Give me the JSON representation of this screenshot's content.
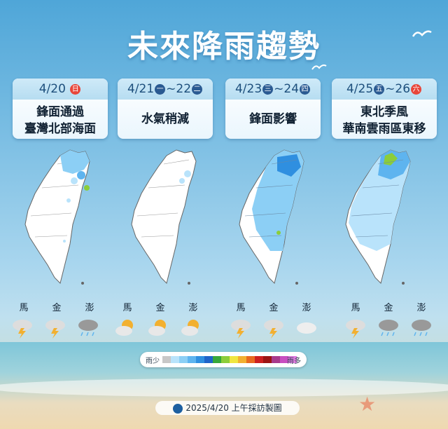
{
  "title": "未來降雨趨勢",
  "footer": "2025/4/20 上午採訪製圖",
  "legend": {
    "low": "雨少",
    "high": "雨多",
    "colors": [
      "#c8c8c8",
      "#b9e3fb",
      "#8ccff5",
      "#5eb4ef",
      "#2f8fe0",
      "#1f64c9",
      "#38a83a",
      "#8ccd3a",
      "#f0e640",
      "#f2b030",
      "#e86a20",
      "#cc2020",
      "#9c1414",
      "#a83a8c",
      "#c84ec0",
      "#e07ae0"
    ]
  },
  "stations": [
    "馬",
    "金",
    "澎"
  ],
  "panels": [
    {
      "date_main": "4/20",
      "weekday": "日",
      "weekday_color": "#e8463a",
      "desc1": "鋒面通過",
      "desc2": "臺灣北部海面",
      "weather": [
        "thunder-rain-icon",
        "thunder-rain-icon",
        "cloud-rain-icon"
      ]
    },
    {
      "date_main": "4/21",
      "weekday": "一",
      "weekday_color": "#2a5a92",
      "date_end": "~22",
      "weekday_end": "二",
      "weekday_end_color": "#2a5a92",
      "desc1": "水氣稍減",
      "desc2": "",
      "weather": [
        "partly-sunny-icon",
        "partly-sunny-icon",
        "partly-sunny-icon"
      ]
    },
    {
      "date_main": "4/23",
      "weekday": "三",
      "weekday_color": "#2a5a92",
      "date_end": "~24",
      "weekday_end": "四",
      "weekday_end_color": "#2a5a92",
      "desc1": "鋒面影響",
      "desc2": "",
      "weather": [
        "thunder-rain-icon",
        "thunder-rain-icon",
        "cloud-icon"
      ]
    },
    {
      "date_main": "4/25",
      "weekday": "五",
      "weekday_color": "#2a5a92",
      "date_end": "~26",
      "weekday_end": "六",
      "weekday_end_color": "#e8463a",
      "desc1": "東北季風",
      "desc2": "華南雲雨區東移",
      "weather": [
        "thunder-rain-icon",
        "cloud-rain-icon",
        "cloud-rain-icon"
      ]
    }
  ]
}
